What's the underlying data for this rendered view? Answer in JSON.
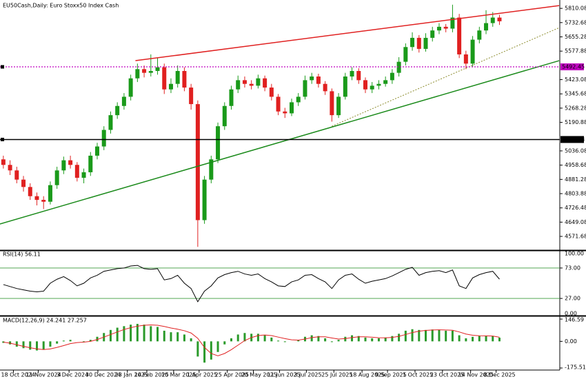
{
  "chart_data": [
    {
      "type": "candlestick",
      "title": "EU50Cash,Daily: Euro Stoxx50 Index Cash",
      "xlim": [
        -0.5,
        83
      ],
      "ylim": [
        4497,
        5848
      ],
      "yticks": [
        5810.08,
        5732.68,
        5655.28,
        5577.88,
        5423.08,
        5345.68,
        5268.28,
        5190.88,
        5036.08,
        4958.68,
        4881.28,
        4803.88,
        4726.48,
        4649.08,
        4571.68
      ],
      "up_color": "#1a9a1a",
      "down_color": "#e02020",
      "open": [
        4990,
        4960,
        4930,
        4880,
        4840,
        4790,
        4770,
        4760,
        4850,
        4930,
        4985,
        4960,
        4890,
        4920,
        5010,
        5060,
        5150,
        5230,
        5280,
        5330,
        5430,
        5480,
        5460,
        5470,
        5490,
        5370,
        5400,
        5470,
        5380,
        5290,
        4660,
        4880,
        4990,
        5170,
        5280,
        5370,
        5420,
        5400,
        5390,
        5430,
        5380,
        5330,
        5250,
        5240,
        5300,
        5330,
        5420,
        5440,
        5400,
        5360,
        5230,
        5330,
        5440,
        5470,
        5420,
        5370,
        5390,
        5400,
        5420,
        5460,
        5520,
        5600,
        5650,
        5590,
        5650,
        5690,
        5710,
        5700,
        5760,
        5560,
        5510,
        5640,
        5690,
        5730,
        5760
      ],
      "high": [
        5010,
        4985,
        4950,
        4900,
        4860,
        4810,
        4790,
        4870,
        4950,
        5005,
        5010,
        4975,
        4940,
        5030,
        5080,
        5170,
        5250,
        5300,
        5350,
        5450,
        5510,
        5500,
        5560,
        5540,
        5510,
        5430,
        5500,
        5490,
        5400,
        5310,
        4900,
        5010,
        5190,
        5300,
        5390,
        5445,
        5440,
        5420,
        5450,
        5445,
        5400,
        5345,
        5270,
        5320,
        5350,
        5445,
        5460,
        5455,
        5415,
        5375,
        5350,
        5460,
        5490,
        5485,
        5435,
        5410,
        5420,
        5440,
        5480,
        5545,
        5620,
        5680,
        5665,
        5675,
        5710,
        5730,
        5725,
        5830,
        5780,
        5580,
        5660,
        5710,
        5800,
        5790,
        5775
      ],
      "low": [
        4940,
        4905,
        4860,
        4815,
        4770,
        4740,
        4720,
        4745,
        4830,
        4910,
        4940,
        4870,
        4860,
        4900,
        4990,
        5040,
        5130,
        5210,
        5260,
        5310,
        5410,
        5435,
        5440,
        5450,
        5345,
        5350,
        5380,
        5360,
        5260,
        4515,
        4640,
        4860,
        4970,
        5150,
        5260,
        5350,
        5380,
        5370,
        5375,
        5360,
        5310,
        5230,
        5215,
        5225,
        5280,
        5315,
        5400,
        5380,
        5340,
        5195,
        5215,
        5315,
        5420,
        5400,
        5350,
        5350,
        5370,
        5385,
        5400,
        5440,
        5500,
        5580,
        5570,
        5575,
        5630,
        5670,
        5680,
        5680,
        5540,
        5480,
        5490,
        5620,
        5670,
        5710,
        5720
      ],
      "close": [
        4960,
        4930,
        4880,
        4840,
        4790,
        4770,
        4760,
        4850,
        4930,
        4985,
        4960,
        4890,
        4920,
        5010,
        5060,
        5150,
        5230,
        5280,
        5330,
        5430,
        5480,
        5460,
        5470,
        5490,
        5370,
        5400,
        5470,
        5380,
        5290,
        4660,
        4880,
        4990,
        5170,
        5280,
        5370,
        5420,
        5400,
        5390,
        5430,
        5380,
        5330,
        5250,
        5240,
        5300,
        5330,
        5420,
        5440,
        5400,
        5360,
        5230,
        5330,
        5440,
        5470,
        5420,
        5370,
        5390,
        5400,
        5420,
        5460,
        5520,
        5600,
        5650,
        5590,
        5650,
        5690,
        5710,
        5700,
        5760,
        5560,
        5510,
        5640,
        5690,
        5730,
        5760,
        5740
      ],
      "hlines": [
        {
          "value": 5492.45,
          "color": "#c000c0",
          "style": "dotted"
        },
        {
          "value": 5097.88,
          "color": "#000000",
          "style": "solid"
        }
      ],
      "trendlines": [
        {
          "x": [
            19.7,
            82.9
          ],
          "y": [
            5526,
            5825
          ],
          "color": "#e02020",
          "style": "solid"
        },
        {
          "x": [
            -0.5,
            82.9
          ],
          "y": [
            4639,
            5526
          ],
          "color": "#1a8a1a",
          "style": "solid"
        },
        {
          "x": [
            49.0,
            82.9
          ],
          "y": [
            5170,
            5705
          ],
          "color": "#8a8a2a",
          "style": "dotted"
        }
      ]
    },
    {
      "type": "line",
      "title": "RSI(14) 56.11",
      "xlim": [
        -0.5,
        83
      ],
      "ylim": [
        0,
        100
      ],
      "yticks": [
        {
          "value": 100,
          "label": "100.00"
        },
        {
          "value": 73,
          "label": "73.00"
        },
        {
          "value": 27,
          "label": "27.00"
        },
        {
          "value": 0,
          "label": "0.00"
        }
      ],
      "levels": [
        73,
        27
      ],
      "level_color": "#3a9a3a",
      "color": "#000000",
      "values": [
        48,
        45,
        42,
        40,
        38,
        37,
        38,
        50,
        56,
        60,
        54,
        46,
        50,
        58,
        62,
        68,
        70,
        72,
        73,
        76,
        77,
        72,
        71,
        72,
        55,
        57,
        62,
        50,
        42,
        22,
        38,
        46,
        58,
        63,
        66,
        68,
        64,
        62,
        64,
        57,
        52,
        46,
        45,
        52,
        55,
        62,
        63,
        57,
        52,
        42,
        55,
        62,
        64,
        56,
        50,
        53,
        55,
        57,
        61,
        66,
        71,
        74,
        62,
        66,
        68,
        69,
        66,
        70,
        46,
        42,
        58,
        63,
        66,
        68,
        56.11
      ]
    },
    {
      "type": "bar",
      "title": "MACD(12,26,9) 24.241 27.257",
      "xlim": [
        -0.5,
        83
      ],
      "ylim": [
        -189,
        165
      ],
      "yticks": [
        146.59,
        {
          "value": 0,
          "label": "0.00"
        },
        -175.51
      ],
      "color": "#2a9a2a",
      "values": [
        -10,
        -20,
        -35,
        -45,
        -55,
        -60,
        -55,
        -35,
        -15,
        5,
        10,
        0,
        -5,
        10,
        30,
        55,
        75,
        90,
        100,
        110,
        115,
        110,
        100,
        95,
        70,
        60,
        60,
        45,
        20,
        -100,
        -140,
        -120,
        -70,
        -20,
        20,
        45,
        55,
        50,
        50,
        40,
        25,
        5,
        -5,
        0,
        10,
        30,
        40,
        35,
        20,
        -5,
        10,
        30,
        40,
        35,
        25,
        20,
        20,
        25,
        35,
        50,
        70,
        80,
        75,
        75,
        78,
        75,
        70,
        70,
        40,
        20,
        30,
        35,
        35,
        35,
        24.241
      ],
      "signal": {
        "color": "#e02020",
        "values": [
          -5,
          -12,
          -22,
          -33,
          -42,
          -50,
          -54,
          -50,
          -40,
          -28,
          -15,
          -8,
          -5,
          0,
          12,
          28,
          45,
          62,
          78,
          90,
          100,
          106,
          108,
          106,
          98,
          88,
          80,
          70,
          55,
          20,
          -40,
          -80,
          -95,
          -80,
          -55,
          -25,
          5,
          25,
          38,
          42,
          38,
          28,
          18,
          10,
          8,
          15,
          25,
          30,
          30,
          22,
          15,
          18,
          25,
          30,
          30,
          27,
          24,
          23,
          26,
          33,
          45,
          58,
          67,
          72,
          75,
          76,
          75,
          73,
          62,
          48,
          40,
          37,
          36,
          35,
          27.257
        ]
      },
      "xticks": [
        {
          "value": 1.5,
          "label": "18 Oct 2024"
        },
        {
          "value": 5.2,
          "label": "11 Nov 2024"
        },
        {
          "value": 9.8,
          "label": "3 Dec 2024"
        },
        {
          "value": 14.1,
          "label": "30 Dec 2024"
        },
        {
          "value": 18.5,
          "label": "23 Jan 2025"
        },
        {
          "value": 21.4,
          "label": "14 Feb 2025"
        },
        {
          "value": 25.4,
          "label": "10 Mar 2025"
        },
        {
          "value": 29.2,
          "label": "1 Apr 2025"
        },
        {
          "value": 33.4,
          "label": "25 Apr 2025"
        },
        {
          "value": 37.3,
          "label": "20 May 2025"
        },
        {
          "value": 41.2,
          "label": "11 Jun 2025"
        },
        {
          "value": 45.2,
          "label": "3 Jul 2025"
        },
        {
          "value": 49.3,
          "label": "25 Jul 2025"
        },
        {
          "value": 53.5,
          "label": "18 Aug 2025"
        },
        {
          "value": 57.3,
          "label": "9 Sep 2025"
        },
        {
          "value": 61.4,
          "label": "1 Oct 2025"
        },
        {
          "value": 65.5,
          "label": "23 Oct 2025"
        },
        {
          "value": 69.7,
          "label": "14 Nov 2025"
        },
        {
          "value": 73.5,
          "label": "8 Dec 2025"
        }
      ]
    }
  ]
}
